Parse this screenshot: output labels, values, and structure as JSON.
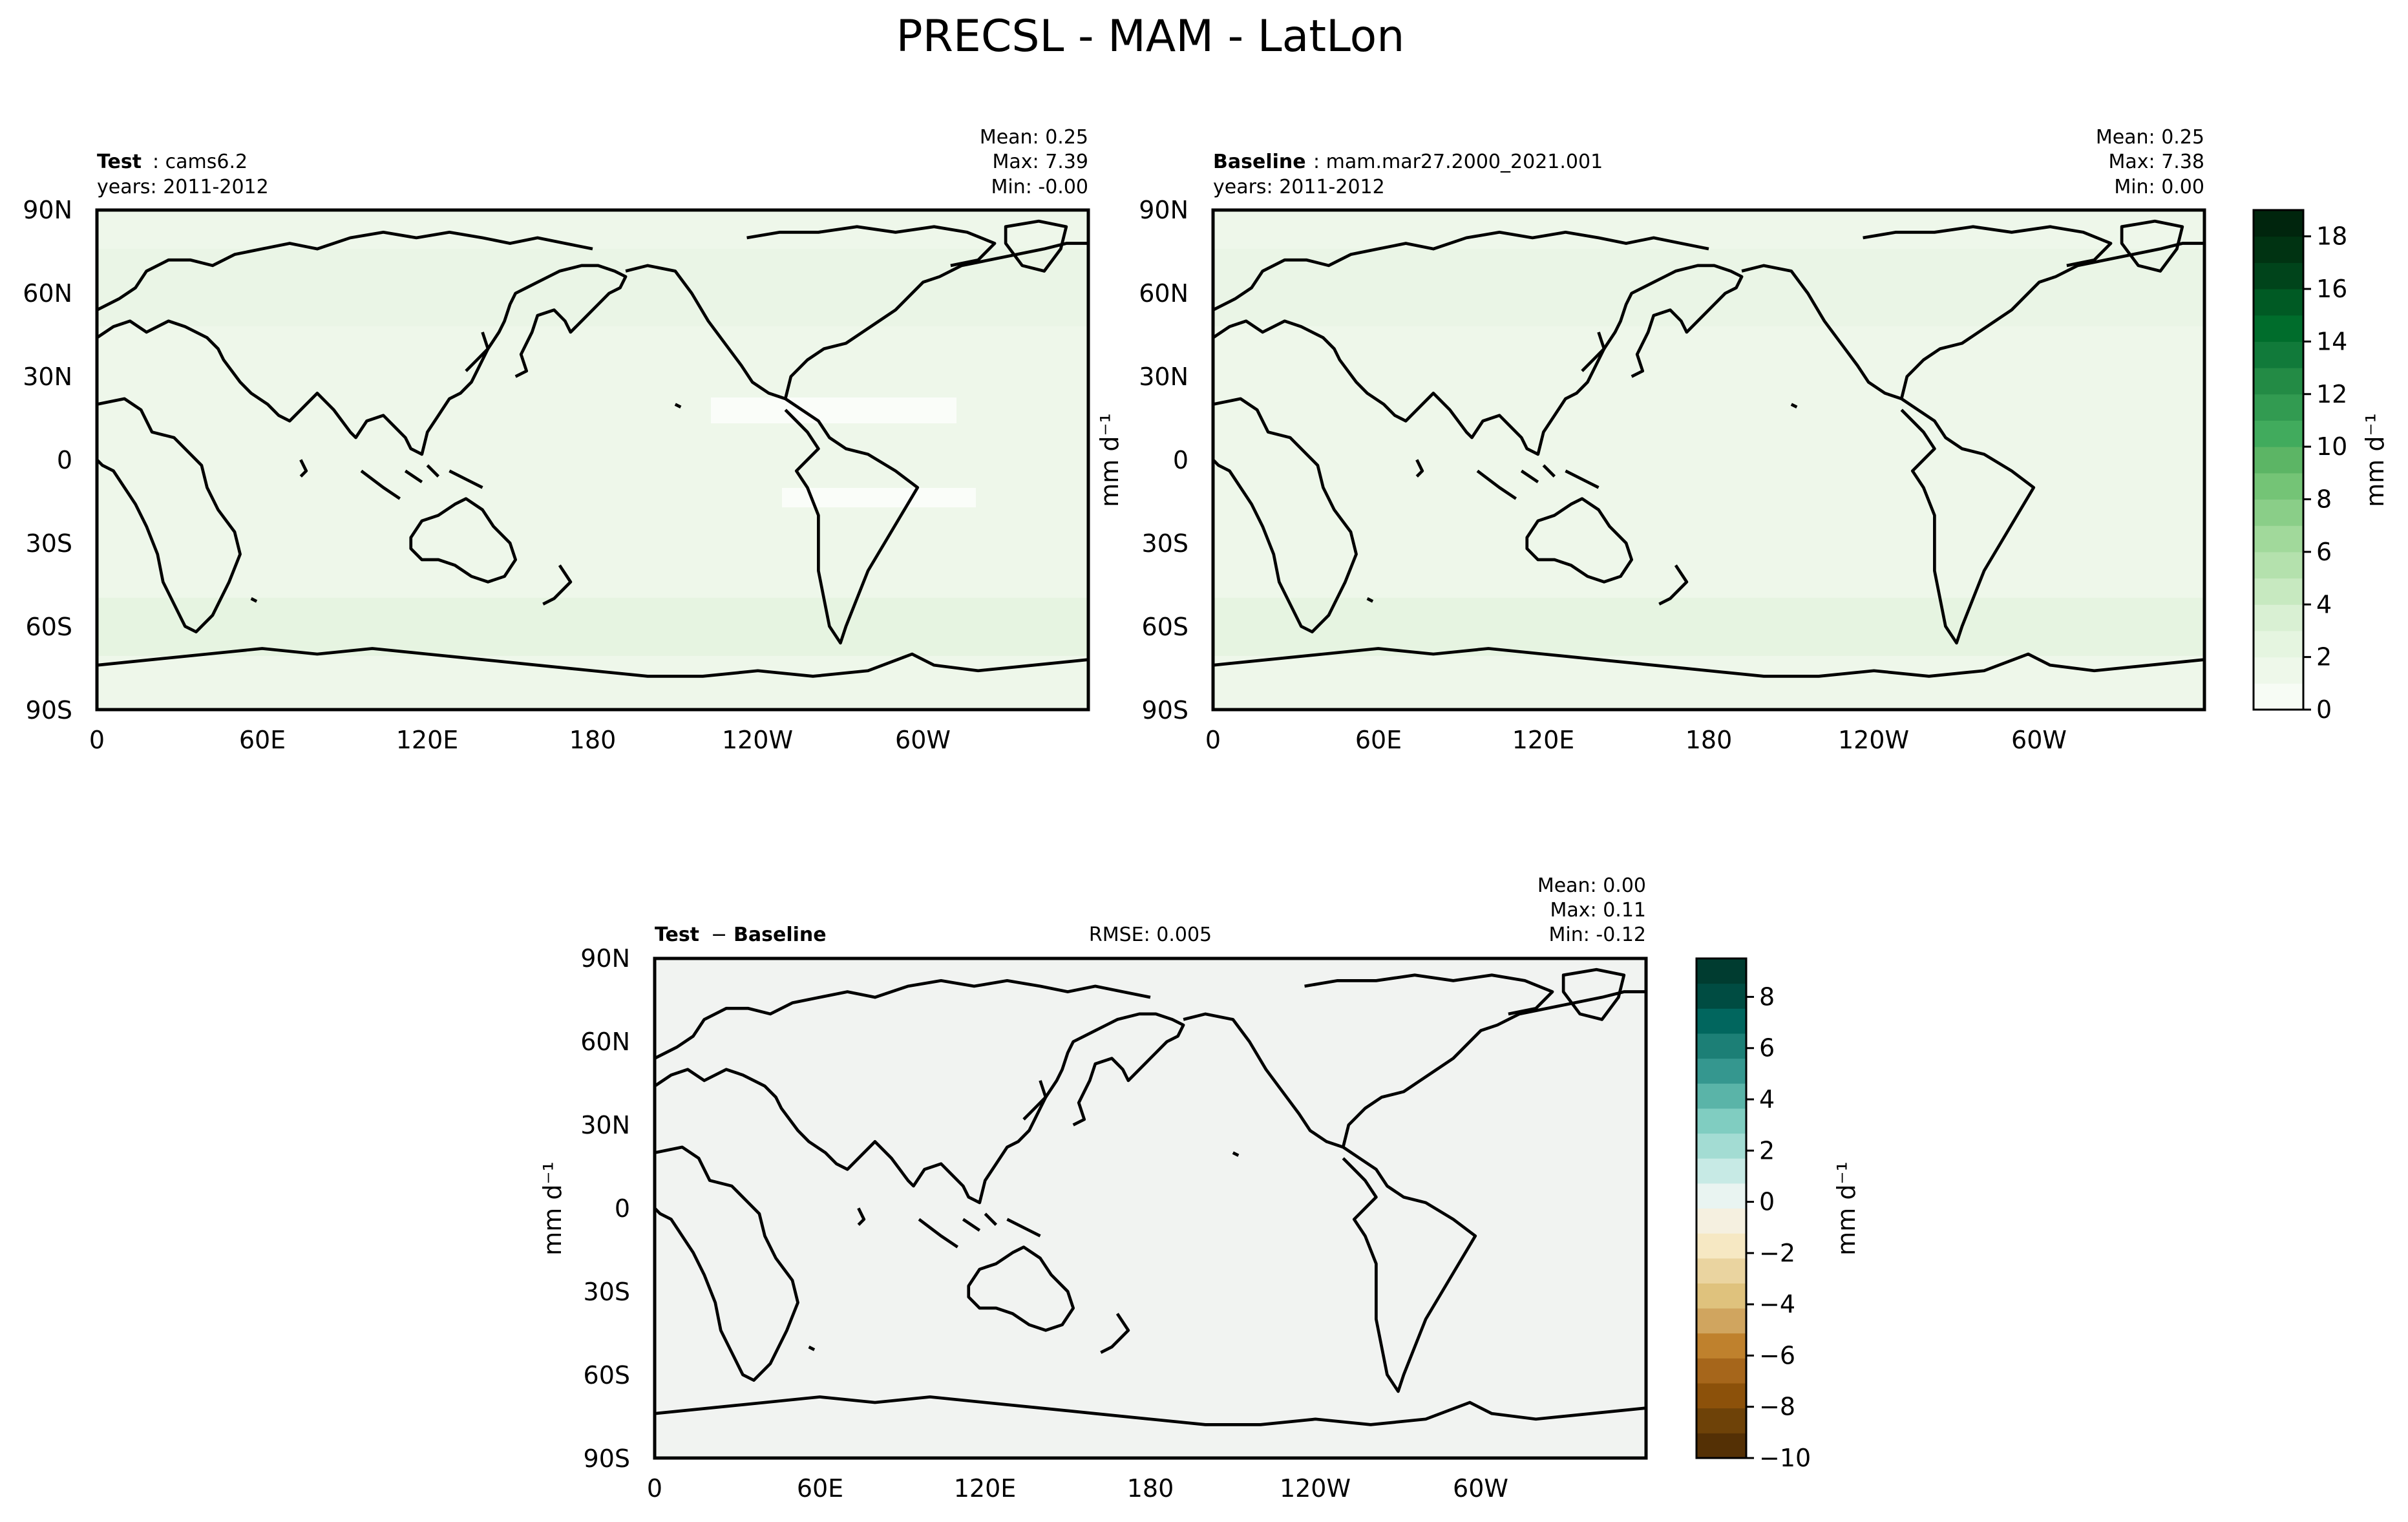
{
  "figure": {
    "title": "PRECSL - MAM - LatLon"
  },
  "axes": {
    "lat_ticks": [
      "90N",
      "60N",
      "30N",
      "0",
      "30S",
      "60S",
      "90S"
    ],
    "lon_ticks": [
      "0",
      "60E",
      "120E",
      "180",
      "120W",
      "60W"
    ]
  },
  "panels": {
    "test": {
      "case_label": "Test",
      "case_name": "cams6.2",
      "years": "years: 2011-2012",
      "mean": "Mean:  0.25",
      "max": "Max:  7.39",
      "min": "Min:  -0.00",
      "units": "mm d⁻¹"
    },
    "baseline": {
      "case_label": "Baseline",
      "case_name": "mam.mar27.2000_2021.001",
      "years": "years: 2011-2012",
      "mean": "Mean:  0.25",
      "max": "Max:  7.38",
      "min": "Min:  0.00"
    },
    "diff": {
      "label_test": "Test",
      "label_op": "−",
      "label_base": "Baseline",
      "rmse": "RMSE: 0.005",
      "mean": "Mean:  0.00",
      "max": "Max:  0.11",
      "min": "Min:  -0.12",
      "units": "mm d⁻¹"
    }
  },
  "colorbars": {
    "main": {
      "ticks": [
        "0",
        "2",
        "4",
        "6",
        "8",
        "10",
        "12",
        "14",
        "16",
        "18"
      ],
      "units": "mm d⁻¹",
      "colors": [
        "#f7fcf5",
        "#eef8ea",
        "#e5f5e0",
        "#d9f0d3",
        "#c7e9c0",
        "#b4e1ad",
        "#a1d99b",
        "#8ace88",
        "#74c476",
        "#5cb565",
        "#41ab5d",
        "#329b51",
        "#238b45",
        "#117a3a",
        "#006d2c",
        "#005a24",
        "#00441b",
        "#003312",
        "#00250d"
      ]
    },
    "diff": {
      "ticks": [
        "8",
        "6",
        "4",
        "2",
        "0",
        "−2",
        "−4",
        "−6",
        "−8",
        "−10"
      ],
      "units": "mm d⁻¹",
      "colors": [
        "#543005",
        "#6e4208",
        "#8c510a",
        "#a6661b",
        "#bf812d",
        "#d0a55f",
        "#dfc27d",
        "#ead4a0",
        "#f6e8c3",
        "#f5f0e0",
        "#e9f4f1",
        "#c7eae5",
        "#a3dcd3",
        "#80cdc1",
        "#5ab4a8",
        "#35978f",
        "#1c7f76",
        "#01665e",
        "#004c42",
        "#003c30"
      ]
    }
  },
  "colors": {
    "land_outline": "#000000",
    "test_field": "#eef7ea",
    "baseline_field": "#eef7ea",
    "diff_field": "#f1f3f1"
  }
}
